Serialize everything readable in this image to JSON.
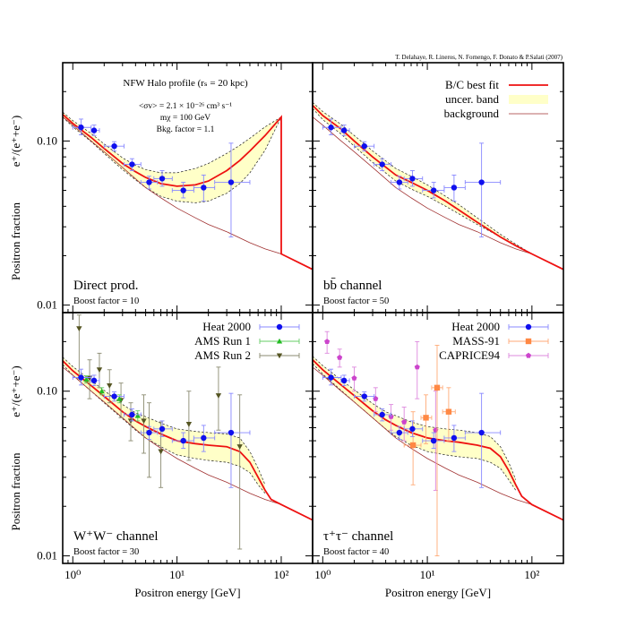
{
  "credit": "T. Delahaye, R. Lineros, N. Fornengo, F. Donato & P.Salati (2007)",
  "axes": {
    "xlabel": "Positron energy [GeV]",
    "ylabel_main": "Positron fraction",
    "ylabel_expr": "e⁺/(e⁺+e⁻)",
    "xlim": [
      0.8,
      200
    ],
    "ylim": [
      0.009,
      0.3
    ],
    "x_scale": "log",
    "y_scale": "log",
    "x_ticks": [
      {
        "v": 1,
        "label": "10⁰"
      },
      {
        "v": 10,
        "label": "10¹"
      },
      {
        "v": 100,
        "label": "10²"
      }
    ],
    "y_ticks": [
      {
        "v": 0.1,
        "label": "0.10"
      },
      {
        "v": 0.01,
        "label": "0.01"
      }
    ]
  },
  "annotation": {
    "halo": "NFW Halo profile (rₛ = 20 kpc)",
    "sigmav": "<σv> = 2.1 × 10⁻²⁶ cm³ s⁻¹",
    "mass": "mχ = 100 GeV",
    "bkg": "Bkg. factor = 1.1"
  },
  "legend_models": [
    {
      "label": "B/C best fit",
      "style": "line",
      "color": "#ee1111"
    },
    {
      "label": "uncer. band",
      "style": "band",
      "color": "#ffffc8"
    },
    {
      "label": "background",
      "style": "thin",
      "color": "#a03030"
    }
  ],
  "legend_data_ams": [
    {
      "label": "Heat 2000",
      "marker": "circle",
      "color": "#1010ee"
    },
    {
      "label": "AMS Run 1",
      "marker": "triangle-up",
      "color": "#22bb22"
    },
    {
      "label": "AMS Run 2",
      "marker": "triangle-down",
      "color": "#555522"
    }
  ],
  "legend_data_mass": [
    {
      "label": "Heat 2000",
      "marker": "circle",
      "color": "#1010ee"
    },
    {
      "label": "MASS-91",
      "marker": "square",
      "color": "#ff8844"
    },
    {
      "label": "CAPRICE94",
      "marker": "pentagon",
      "color": "#cc44cc"
    }
  ],
  "chart_data": [
    {
      "type": "line",
      "panel": "top-left",
      "label": "Direct prod.",
      "boost": "Boost factor = 10",
      "series": [
        {
          "name": "B/C best fit",
          "x": [
            0.8,
            1,
            1.5,
            2,
            3,
            4,
            5,
            7,
            10,
            15,
            20,
            30,
            40,
            50,
            70,
            100,
            100,
            200
          ],
          "y": [
            0.145,
            0.128,
            0.105,
            0.09,
            0.073,
            0.065,
            0.06,
            0.055,
            0.053,
            0.054,
            0.057,
            0.066,
            0.076,
            0.087,
            0.108,
            0.14,
            0.0205,
            0.0165
          ]
        },
        {
          "name": "uncer. band",
          "x": [
            0.8,
            1,
            1.5,
            2,
            3,
            4,
            5,
            7,
            10,
            15,
            20,
            30,
            40,
            50,
            70,
            100
          ],
          "y_low": [
            0.14,
            0.122,
            0.099,
            0.084,
            0.067,
            0.058,
            0.052,
            0.046,
            0.043,
            0.042,
            0.043,
            0.048,
            0.055,
            0.064,
            0.088,
            0.14
          ],
          "y_high": [
            0.15,
            0.133,
            0.111,
            0.096,
            0.079,
            0.071,
            0.067,
            0.064,
            0.064,
            0.068,
            0.073,
            0.084,
            0.094,
            0.104,
            0.122,
            0.14
          ]
        },
        {
          "name": "background",
          "x": [
            0.8,
            1,
            1.5,
            2,
            3,
            5,
            7,
            10,
            15,
            20,
            30,
            50,
            70,
            100,
            200
          ],
          "y": [
            0.14,
            0.125,
            0.1,
            0.086,
            0.069,
            0.052,
            0.045,
            0.039,
            0.034,
            0.031,
            0.028,
            0.024,
            0.022,
            0.0205,
            0.0165
          ]
        }
      ]
    },
    {
      "type": "line",
      "panel": "top-right",
      "label": "bb̄ channel",
      "boost": "Boost factor = 50",
      "series": [
        {
          "name": "B/C best fit",
          "x": [
            0.8,
            1,
            1.5,
            2,
            3,
            5,
            7,
            10,
            15,
            20,
            30,
            50,
            70,
            100,
            200
          ],
          "y": [
            0.165,
            0.143,
            0.118,
            0.1,
            0.08,
            0.062,
            0.056,
            0.05,
            0.043,
            0.038,
            0.032,
            0.026,
            0.023,
            0.0205,
            0.0165
          ]
        },
        {
          "name": "uncer. band",
          "x": [
            0.8,
            1,
            1.5,
            2,
            3,
            5,
            7,
            10,
            15,
            20,
            30,
            50,
            70,
            100
          ],
          "y_low": [
            0.158,
            0.135,
            0.11,
            0.093,
            0.074,
            0.057,
            0.051,
            0.046,
            0.04,
            0.036,
            0.031,
            0.026,
            0.023,
            0.0205
          ],
          "y_high": [
            0.172,
            0.151,
            0.126,
            0.108,
            0.087,
            0.068,
            0.061,
            0.054,
            0.046,
            0.041,
            0.034,
            0.027,
            0.0235,
            0.0205
          ]
        },
        {
          "name": "background",
          "x": [
            0.8,
            1,
            1.5,
            2,
            3,
            5,
            7,
            10,
            15,
            20,
            30,
            50,
            70,
            100,
            200
          ],
          "y": [
            0.14,
            0.125,
            0.1,
            0.086,
            0.069,
            0.052,
            0.045,
            0.039,
            0.034,
            0.031,
            0.028,
            0.024,
            0.022,
            0.0205,
            0.0165
          ]
        }
      ]
    },
    {
      "type": "line",
      "panel": "bottom-left",
      "label": "W⁺W⁻ channel",
      "boost": "Boost factor = 30",
      "series": [
        {
          "name": "B/C best fit",
          "x": [
            0.8,
            1,
            1.5,
            2,
            3,
            4,
            5,
            7,
            10,
            15,
            20,
            30,
            40,
            50,
            60,
            70,
            80,
            100,
            200
          ],
          "y": [
            0.153,
            0.133,
            0.108,
            0.093,
            0.075,
            0.066,
            0.061,
            0.055,
            0.05,
            0.048,
            0.047,
            0.046,
            0.043,
            0.037,
            0.03,
            0.025,
            0.022,
            0.0205,
            0.0165
          ]
        },
        {
          "name": "uncer. band",
          "x": [
            0.8,
            1,
            1.5,
            2,
            3,
            4,
            5,
            7,
            10,
            15,
            20,
            30,
            40,
            50,
            60,
            70
          ],
          "y_low": [
            0.145,
            0.125,
            0.1,
            0.085,
            0.068,
            0.058,
            0.052,
            0.046,
            0.041,
            0.039,
            0.038,
            0.037,
            0.035,
            0.032,
            0.027,
            0.024
          ],
          "y_high": [
            0.161,
            0.141,
            0.116,
            0.101,
            0.083,
            0.074,
            0.07,
            0.064,
            0.059,
            0.057,
            0.056,
            0.055,
            0.052,
            0.043,
            0.034,
            0.027
          ]
        },
        {
          "name": "background",
          "x": [
            0.8,
            1,
            1.5,
            2,
            3,
            5,
            7,
            10,
            15,
            20,
            30,
            50,
            70,
            100,
            200
          ],
          "y": [
            0.14,
            0.125,
            0.1,
            0.086,
            0.069,
            0.052,
            0.045,
            0.039,
            0.034,
            0.031,
            0.028,
            0.024,
            0.022,
            0.0205,
            0.0165
          ]
        }
      ]
    },
    {
      "type": "line",
      "panel": "bottom-right",
      "label": "τ⁺τ⁻ channel",
      "boost": "Boost factor = 40",
      "series": [
        {
          "name": "B/C best fit",
          "x": [
            0.8,
            1,
            1.5,
            2,
            3,
            4,
            5,
            7,
            10,
            15,
            20,
            30,
            40,
            50,
            60,
            70,
            80,
            100,
            200
          ],
          "y": [
            0.155,
            0.135,
            0.109,
            0.094,
            0.076,
            0.067,
            0.062,
            0.056,
            0.052,
            0.05,
            0.049,
            0.047,
            0.045,
            0.04,
            0.033,
            0.027,
            0.023,
            0.0205,
            0.0165
          ]
        },
        {
          "name": "uncer. band",
          "x": [
            0.8,
            1,
            1.5,
            2,
            3,
            4,
            5,
            7,
            10,
            15,
            20,
            30,
            40,
            50,
            60,
            70
          ],
          "y_low": [
            0.147,
            0.127,
            0.101,
            0.086,
            0.069,
            0.059,
            0.053,
            0.047,
            0.043,
            0.041,
            0.04,
            0.039,
            0.037,
            0.034,
            0.029,
            0.025
          ],
          "y_high": [
            0.163,
            0.143,
            0.117,
            0.102,
            0.084,
            0.075,
            0.071,
            0.065,
            0.061,
            0.059,
            0.058,
            0.056,
            0.053,
            0.046,
            0.037,
            0.029
          ]
        },
        {
          "name": "background",
          "x": [
            0.8,
            1,
            1.5,
            2,
            3,
            5,
            7,
            10,
            15,
            20,
            30,
            50,
            70,
            100,
            200
          ],
          "y": [
            0.14,
            0.125,
            0.1,
            0.086,
            0.069,
            0.052,
            0.045,
            0.039,
            0.034,
            0.031,
            0.028,
            0.024,
            0.022,
            0.0205,
            0.0165
          ]
        }
      ]
    }
  ],
  "experimental_data": {
    "heat2000": [
      {
        "x": 1.2,
        "xlo": 1.0,
        "xhi": 1.5,
        "y": 0.121,
        "ylo": 0.109,
        "yhi": 0.136
      },
      {
        "x": 1.6,
        "xlo": 1.5,
        "xhi": 1.8,
        "y": 0.116,
        "ylo": 0.108,
        "yhi": 0.125
      },
      {
        "x": 2.5,
        "xlo": 2.0,
        "xhi": 3.1,
        "y": 0.093,
        "ylo": 0.087,
        "yhi": 0.099
      },
      {
        "x": 3.7,
        "xlo": 3.1,
        "xhi": 4.5,
        "y": 0.072,
        "ylo": 0.066,
        "yhi": 0.078
      },
      {
        "x": 5.4,
        "xlo": 4.5,
        "xhi": 6.5,
        "y": 0.056,
        "ylo": 0.051,
        "yhi": 0.061
      },
      {
        "x": 7.2,
        "xlo": 6.0,
        "xhi": 9.0,
        "y": 0.059,
        "ylo": 0.053,
        "yhi": 0.066
      },
      {
        "x": 11.5,
        "xlo": 9.0,
        "xhi": 14.5,
        "y": 0.05,
        "ylo": 0.045,
        "yhi": 0.056
      },
      {
        "x": 18.0,
        "xlo": 14.5,
        "xhi": 23.0,
        "y": 0.052,
        "ylo": 0.043,
        "yhi": 0.062
      },
      {
        "x": 33.0,
        "xlo": 23.0,
        "xhi": 50.0,
        "y": 0.056,
        "ylo": 0.026,
        "yhi": 0.097
      }
    ],
    "ams_run1": [
      {
        "x": 1.35,
        "y": 0.118,
        "ylo": 0.112,
        "yhi": 0.124
      },
      {
        "x": 1.9,
        "y": 0.1,
        "ylo": 0.095,
        "yhi": 0.105
      },
      {
        "x": 2.8,
        "y": 0.09,
        "ylo": 0.085,
        "yhi": 0.095
      },
      {
        "x": 4.2,
        "y": 0.071,
        "ylo": 0.066,
        "yhi": 0.076
      }
    ],
    "ams_run2": [
      {
        "x": 1.15,
        "y": 0.24,
        "ylo": 0.12,
        "yhi": 0.29
      },
      {
        "x": 1.45,
        "y": 0.12,
        "ylo": 0.09,
        "yhi": 0.155
      },
      {
        "x": 1.8,
        "y": 0.135,
        "ylo": 0.105,
        "yhi": 0.17
      },
      {
        "x": 2.25,
        "y": 0.108,
        "ylo": 0.085,
        "yhi": 0.135
      },
      {
        "x": 2.9,
        "y": 0.088,
        "ylo": 0.069,
        "yhi": 0.112
      },
      {
        "x": 3.6,
        "y": 0.066,
        "ylo": 0.05,
        "yhi": 0.085
      },
      {
        "x": 4.8,
        "y": 0.066,
        "ylo": 0.042,
        "yhi": 0.095
      },
      {
        "x": 5.4,
        "y": 0.056,
        "ylo": 0.03,
        "yhi": 0.085
      },
      {
        "x": 7.0,
        "y": 0.043,
        "ylo": 0.026,
        "yhi": 0.065
      },
      {
        "x": 13.0,
        "y": 0.063,
        "ylo": 0.038,
        "yhi": 0.1
      },
      {
        "x": 25.0,
        "y": 0.094,
        "ylo": 0.058,
        "yhi": 0.14
      },
      {
        "x": 40.0,
        "y": 0.046,
        "ylo": 0.011,
        "yhi": 0.095
      }
    ],
    "mass91": [
      {
        "x": 7.3,
        "xlo": 6.0,
        "xhi": 8.7,
        "y": 0.047,
        "ylo": 0.027,
        "yhi": 0.075
      },
      {
        "x": 9.7,
        "xlo": 8.7,
        "xhi": 11.0,
        "y": 0.069,
        "ylo": 0.048,
        "yhi": 0.095
      },
      {
        "x": 12.4,
        "xlo": 11.0,
        "xhi": 14.0,
        "y": 0.105,
        "ylo": 0.01,
        "yhi": 0.19
      },
      {
        "x": 16.0,
        "xlo": 14.0,
        "xhi": 18.5,
        "y": 0.075,
        "ylo": 0.05,
        "yhi": 0.105
      }
    ],
    "caprice94": [
      {
        "x": 1.1,
        "y": 0.2,
        "ylo": 0.17,
        "yhi": 0.23
      },
      {
        "x": 1.45,
        "y": 0.16,
        "ylo": 0.14,
        "yhi": 0.18
      },
      {
        "x": 2.0,
        "y": 0.12,
        "ylo": 0.1,
        "yhi": 0.14
      },
      {
        "x": 3.2,
        "y": 0.09,
        "ylo": 0.075,
        "yhi": 0.105
      },
      {
        "x": 4.5,
        "y": 0.07,
        "ylo": 0.058,
        "yhi": 0.083
      },
      {
        "x": 6.0,
        "y": 0.065,
        "ylo": 0.05,
        "yhi": 0.08
      },
      {
        "x": 8.0,
        "y": 0.14,
        "ylo": 0.09,
        "yhi": 0.2
      },
      {
        "x": 12.0,
        "y": 0.058,
        "ylo": 0.025,
        "yhi": 0.1
      }
    ]
  }
}
